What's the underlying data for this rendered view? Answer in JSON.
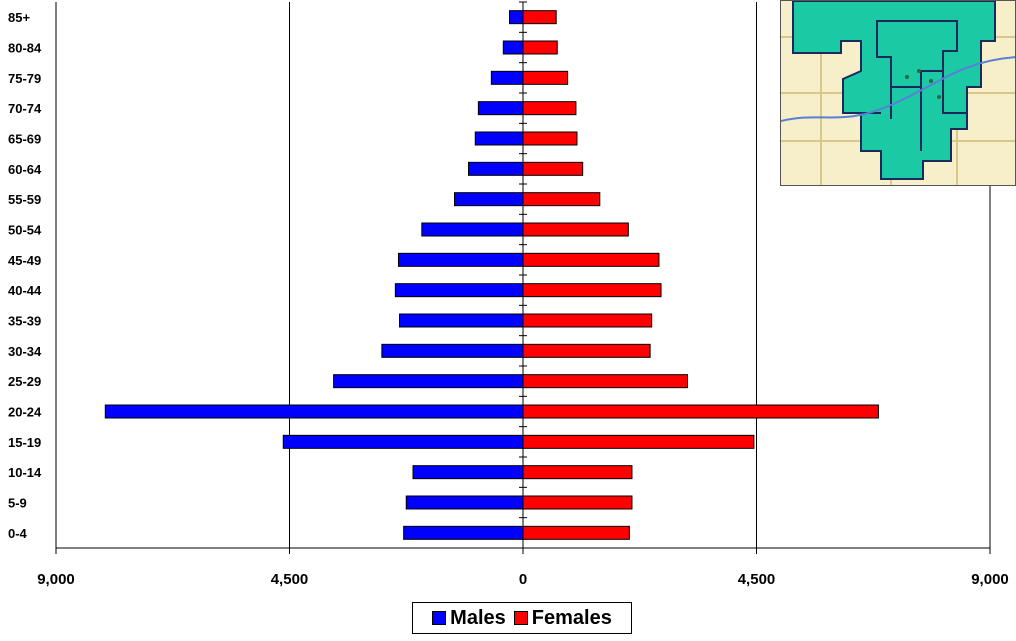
{
  "chart_data": {
    "type": "bar",
    "orientation": "horizontal",
    "style": "population-pyramid",
    "categories": [
      "0-4",
      "5-9",
      "10-14",
      "15-19",
      "20-24",
      "25-29",
      "30-34",
      "35-39",
      "40-44",
      "45-49",
      "50-54",
      "55-59",
      "60-64",
      "65-69",
      "70-74",
      "75-79",
      "80-84",
      "85+"
    ],
    "series": [
      {
        "name": "Males",
        "color": "#0000ff",
        "values": [
          2300,
          2250,
          2120,
          4620,
          8050,
          3650,
          2720,
          2380,
          2460,
          2400,
          1950,
          1320,
          1050,
          920,
          860,
          610,
          380,
          260
        ]
      },
      {
        "name": "Females",
        "color": "#ff0000",
        "values": [
          2050,
          2100,
          2100,
          4450,
          6850,
          3170,
          2450,
          2480,
          2660,
          2620,
          2030,
          1480,
          1150,
          1040,
          1020,
          860,
          660,
          640
        ]
      }
    ],
    "xlim": [
      -9000,
      9000
    ],
    "x_ticks": [
      {
        "value": -9000,
        "label": "9,000"
      },
      {
        "value": -4500,
        "label": "4,500"
      },
      {
        "value": 0,
        "label": "0"
      },
      {
        "value": 4500,
        "label": "4,500"
      },
      {
        "value": 9000,
        "label": "9,000"
      }
    ],
    "grid": "vertical",
    "legend": {
      "position": "bottom",
      "labels": [
        "Males",
        "Females"
      ]
    },
    "title": "",
    "xlabel": "",
    "ylabel": ""
  },
  "inset_map": {
    "icon": "city-area-map",
    "fill_color": "#1cc9a5",
    "background_color": "#f6efc9"
  }
}
